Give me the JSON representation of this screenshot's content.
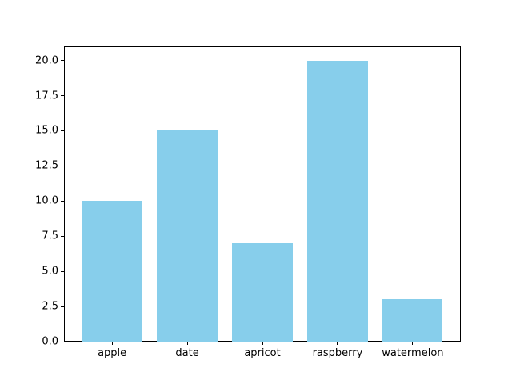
{
  "chart_data": {
    "type": "bar",
    "title": "",
    "xlabel": "",
    "ylabel": "",
    "categories": [
      "apple",
      "date",
      "apricot",
      "raspberry",
      "watermelon"
    ],
    "values": [
      10,
      15,
      7,
      20,
      3
    ],
    "yticks": [
      0.0,
      2.5,
      5.0,
      7.5,
      10.0,
      12.5,
      15.0,
      17.5,
      20.0
    ],
    "ytick_labels": [
      "0.0",
      "2.5",
      "5.0",
      "7.5",
      "10.0",
      "12.5",
      "15.0",
      "17.5",
      "20.0"
    ],
    "ylim": [
      0,
      21
    ],
    "xlim": [
      -0.64,
      4.64
    ],
    "bar_width": 0.8,
    "bar_color": "#87CEEB",
    "spine_color": "#000000",
    "background_color": "#ffffff",
    "grid": false,
    "legend": false
  }
}
